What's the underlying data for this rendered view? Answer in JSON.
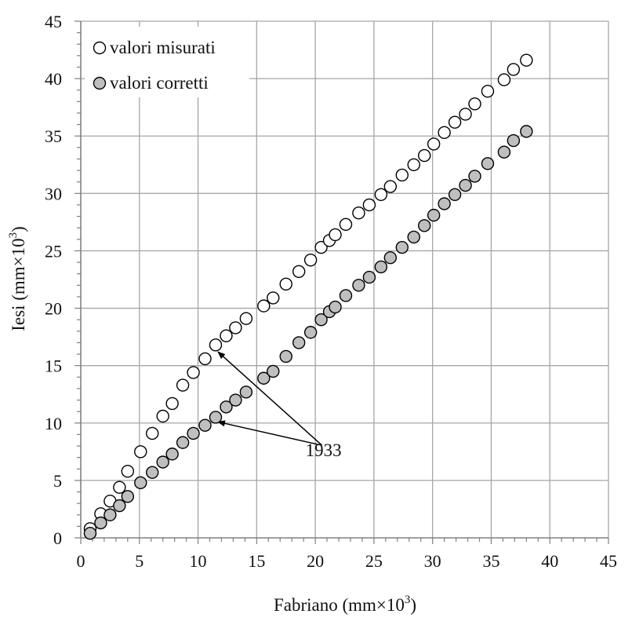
{
  "chart_data": {
    "type": "scatter",
    "title": "",
    "xlabel": "Fabriano (mm×10",
    "xlabel_sup": "3",
    "xlabel_tail": ")",
    "ylabel": "Iesi (mm×10",
    "ylabel_sup": "3",
    "ylabel_tail": ")",
    "xlim": [
      0,
      45
    ],
    "ylim": [
      0,
      45
    ],
    "xticks": [
      0,
      5,
      10,
      15,
      20,
      25,
      30,
      35,
      40,
      45
    ],
    "yticks": [
      0,
      5,
      10,
      15,
      20,
      25,
      30,
      35,
      40,
      45
    ],
    "grid": true,
    "legend_position": "top-left",
    "colors": {
      "open_fill": "#ffffff",
      "filled_fill": "#bfbfbf",
      "marker_edge": "#000000",
      "grid": "#a6a6a6"
    },
    "series": [
      {
        "name": "valori misurati",
        "marker": "open-circle",
        "points": [
          [
            0.8,
            0.8
          ],
          [
            1.7,
            2.1
          ],
          [
            2.5,
            3.2
          ],
          [
            3.3,
            4.4
          ],
          [
            4.0,
            5.8
          ],
          [
            5.1,
            7.5
          ],
          [
            6.1,
            9.1
          ],
          [
            7.0,
            10.6
          ],
          [
            7.8,
            11.7
          ],
          [
            8.7,
            13.3
          ],
          [
            9.6,
            14.4
          ],
          [
            10.6,
            15.6
          ],
          [
            11.5,
            16.8
          ],
          [
            12.4,
            17.6
          ],
          [
            13.2,
            18.3
          ],
          [
            14.1,
            19.1
          ],
          [
            15.6,
            20.2
          ],
          [
            16.4,
            20.9
          ],
          [
            17.5,
            22.1
          ],
          [
            18.6,
            23.2
          ],
          [
            19.6,
            24.2
          ],
          [
            20.5,
            25.3
          ],
          [
            21.2,
            25.9
          ],
          [
            21.7,
            26.4
          ],
          [
            22.6,
            27.3
          ],
          [
            23.7,
            28.3
          ],
          [
            24.6,
            29.0
          ],
          [
            25.6,
            29.9
          ],
          [
            26.4,
            30.6
          ],
          [
            27.4,
            31.6
          ],
          [
            28.4,
            32.5
          ],
          [
            29.3,
            33.3
          ],
          [
            30.1,
            34.3
          ],
          [
            31.0,
            35.3
          ],
          [
            31.9,
            36.2
          ],
          [
            32.8,
            36.9
          ],
          [
            33.6,
            37.8
          ],
          [
            34.7,
            38.9
          ],
          [
            36.1,
            39.9
          ],
          [
            36.9,
            40.8
          ],
          [
            38.0,
            41.6
          ]
        ]
      },
      {
        "name": "valori corretti",
        "marker": "filled-circle",
        "points": [
          [
            0.8,
            0.4
          ],
          [
            1.7,
            1.3
          ],
          [
            2.5,
            2.0
          ],
          [
            3.3,
            2.8
          ],
          [
            4.0,
            3.6
          ],
          [
            5.1,
            4.8
          ],
          [
            6.1,
            5.7
          ],
          [
            7.0,
            6.6
          ],
          [
            7.8,
            7.3
          ],
          [
            8.7,
            8.3
          ],
          [
            9.6,
            9.1
          ],
          [
            10.6,
            9.8
          ],
          [
            11.5,
            10.5
          ],
          [
            12.4,
            11.4
          ],
          [
            13.2,
            12.0
          ],
          [
            14.1,
            12.7
          ],
          [
            15.6,
            13.9
          ],
          [
            16.4,
            14.5
          ],
          [
            17.5,
            15.8
          ],
          [
            18.6,
            17.0
          ],
          [
            19.6,
            17.9
          ],
          [
            20.5,
            19.0
          ],
          [
            21.2,
            19.7
          ],
          [
            21.7,
            20.1
          ],
          [
            22.6,
            21.1
          ],
          [
            23.7,
            22.0
          ],
          [
            24.6,
            22.7
          ],
          [
            25.6,
            23.6
          ],
          [
            26.4,
            24.4
          ],
          [
            27.4,
            25.3
          ],
          [
            28.4,
            26.2
          ],
          [
            29.3,
            27.2
          ],
          [
            30.1,
            28.1
          ],
          [
            31.0,
            29.1
          ],
          [
            31.9,
            29.9
          ],
          [
            32.8,
            30.7
          ],
          [
            33.6,
            31.5
          ],
          [
            34.7,
            32.6
          ],
          [
            36.1,
            33.6
          ],
          [
            36.9,
            34.6
          ],
          [
            38.0,
            35.4
          ]
        ]
      }
    ],
    "annotations": [
      {
        "text": "1933",
        "x": 20.7,
        "y": 7.1,
        "arrows_to": [
          [
            11.7,
            16.2
          ],
          [
            11.7,
            10.1
          ]
        ]
      }
    ]
  }
}
